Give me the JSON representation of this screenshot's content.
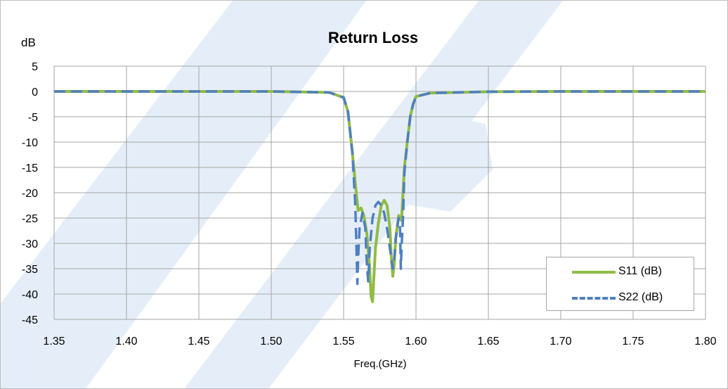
{
  "title": "Return Loss",
  "y_unit": "dB",
  "x_label": "Freq.(GHz)",
  "colors": {
    "s11": "#8fbc45",
    "s22": "#4f7fc0",
    "grid": "#a6a6a6",
    "watermark": "#e5eef8"
  },
  "legend": {
    "s11_label": "S11 (dB)",
    "s22_label": "S22 (dB)"
  },
  "chart_data": {
    "type": "line",
    "title": "Return Loss",
    "xlabel": "Freq.(GHz)",
    "ylabel": "dB",
    "xlim": [
      1.35,
      1.8
    ],
    "ylim": [
      -45,
      5
    ],
    "x_ticks": [
      "1.35",
      "1.40",
      "1.45",
      "1.50",
      "1.55",
      "1.60",
      "1.65",
      "1.70",
      "1.75",
      "1.80"
    ],
    "y_ticks": [
      "5",
      "0",
      "-5",
      "-10",
      "-15",
      "-20",
      "-25",
      "-30",
      "-35",
      "-40",
      "-45"
    ],
    "grid": true,
    "legend_position": "bottom-right",
    "series": [
      {
        "name": "S11 (dB)",
        "style": "solid",
        "x": [
          1.35,
          1.4,
          1.5,
          1.54,
          1.55,
          1.553,
          1.556,
          1.558,
          1.56,
          1.562,
          1.564,
          1.566,
          1.568,
          1.569,
          1.57,
          1.571,
          1.572,
          1.574,
          1.576,
          1.578,
          1.58,
          1.582,
          1.583,
          1.584,
          1.585,
          1.586,
          1.588,
          1.59,
          1.591,
          1.592,
          1.594,
          1.596,
          1.598,
          1.6,
          1.61,
          1.65,
          1.7,
          1.8
        ],
        "y": [
          0,
          0,
          0,
          -0.2,
          -1.2,
          -4,
          -12,
          -18,
          -23.5,
          -23,
          -24.5,
          -28,
          -35,
          -40.5,
          -41.5,
          -36,
          -31,
          -26,
          -22.5,
          -21.5,
          -22.5,
          -27,
          -33,
          -36.5,
          -34,
          -29,
          -24.5,
          -25.5,
          -20,
          -15,
          -10,
          -5,
          -2.5,
          -1,
          -0.3,
          -0.05,
          0,
          0
        ]
      },
      {
        "name": "S22 (dB)",
        "style": "dashed",
        "x": [
          1.35,
          1.4,
          1.5,
          1.54,
          1.55,
          1.553,
          1.556,
          1.558,
          1.559,
          1.5595,
          1.56,
          1.561,
          1.563,
          1.565,
          1.566,
          1.567,
          1.568,
          1.57,
          1.572,
          1.574,
          1.576,
          1.578,
          1.58,
          1.582,
          1.584,
          1.585,
          1.586,
          1.588,
          1.589,
          1.5895,
          1.59,
          1.591,
          1.592,
          1.594,
          1.596,
          1.598,
          1.6,
          1.61,
          1.65,
          1.7,
          1.8
        ],
        "y": [
          0,
          0,
          0,
          -0.2,
          -1.2,
          -4,
          -12,
          -22,
          -32,
          -38,
          -33,
          -27,
          -24,
          -27,
          -34,
          -37.5,
          -31,
          -25,
          -22.5,
          -21.8,
          -22.5,
          -24,
          -27,
          -31,
          -35,
          -33,
          -29,
          -25,
          -27,
          -35,
          -31,
          -25,
          -16,
          -10,
          -5,
          -2.5,
          -1,
          -0.3,
          -0.05,
          0,
          0
        ]
      }
    ]
  }
}
